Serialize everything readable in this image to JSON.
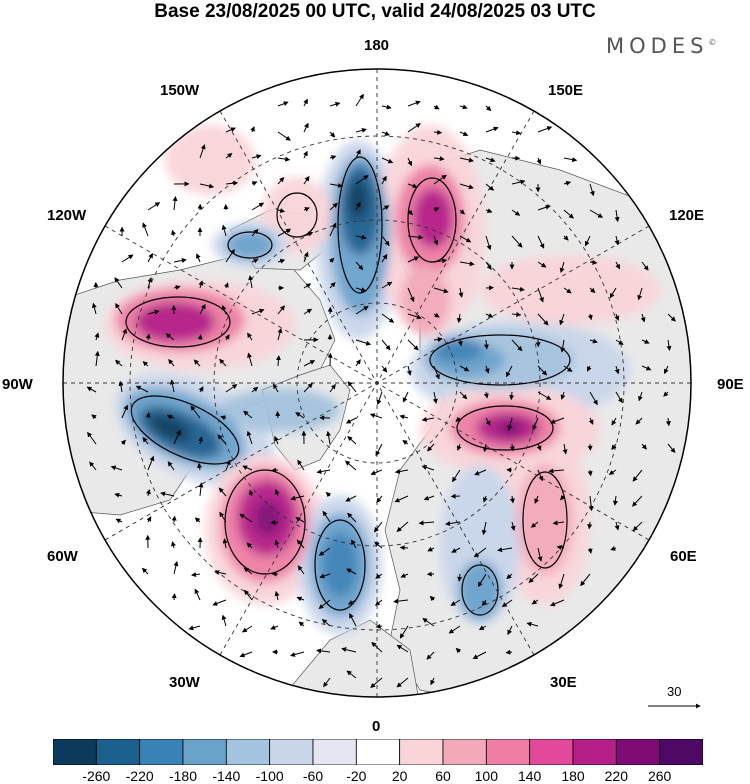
{
  "title": "Base 23/08/2025 00 UTC, valid 24/08/2025 03 UTC",
  "brand": "MODES",
  "brand_mark": "©",
  "longitude_labels": {
    "top": "180",
    "top_left": "150W",
    "top_right": "150E",
    "upper_left": "120W",
    "upper_right": "120E",
    "left": "90W",
    "right": "90E",
    "lower_left": "60W",
    "lower_right": "60E",
    "bottom_left": "30W",
    "bottom_right": "30E",
    "bottom": "0"
  },
  "vector_reference": "30",
  "colorbar": {
    "levels": [
      "-260",
      "-220",
      "-180",
      "-140",
      "-100",
      "-60",
      "-20",
      "20",
      "60",
      "100",
      "140",
      "180",
      "220",
      "260"
    ],
    "colors": [
      "#0b3a5c",
      "#1b5f8f",
      "#3a81b5",
      "#6aa2cc",
      "#a4c3de",
      "#c9d6ea",
      "#e6e6f2",
      "#ffffff",
      "#f9d4d9",
      "#f3a9b9",
      "#ee7ea4",
      "#e3499a",
      "#b51f87",
      "#7f0b75",
      "#4e0866"
    ]
  },
  "map": {
    "land_color": "#e8e8e8",
    "ocean_color": "#ffffff"
  },
  "anomalies": [
    {
      "name": "pos-nw-pacific",
      "value": 160
    },
    {
      "name": "neg-n-pacific",
      "value": -240
    },
    {
      "name": "pos-bering",
      "value": 180
    },
    {
      "name": "neg-gulf-alaska",
      "value": -140
    },
    {
      "name": "pos-alaska",
      "value": 80
    },
    {
      "name": "pos-canada",
      "value": 160
    },
    {
      "name": "neg-hudson",
      "value": -260
    },
    {
      "name": "pos-atlantic-west",
      "value": 240
    },
    {
      "name": "neg-atlantic",
      "value": -220
    },
    {
      "name": "pos-siberia",
      "value": 200
    },
    {
      "name": "neg-siberia",
      "value": -160
    },
    {
      "name": "pos-russia",
      "value": 140
    },
    {
      "name": "neg-europe",
      "value": -120
    }
  ]
}
